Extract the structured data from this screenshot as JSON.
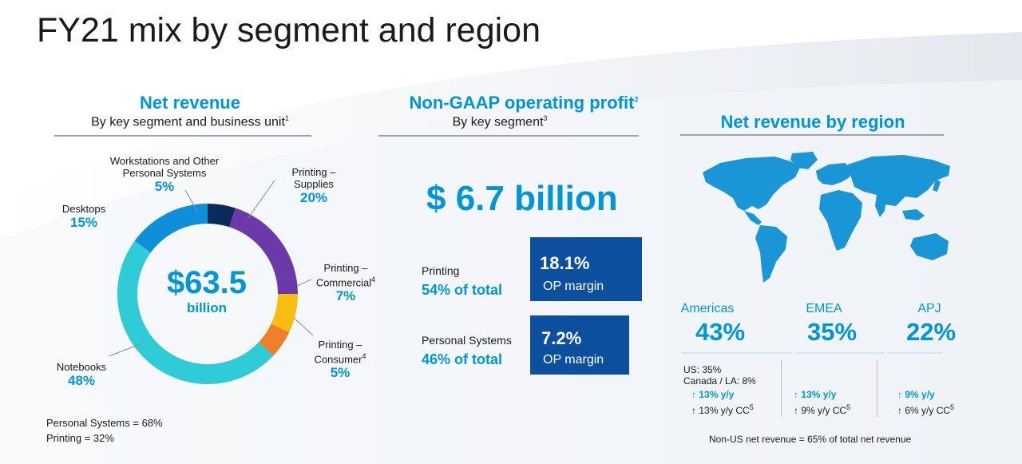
{
  "title": "FY21 mix by segment and region",
  "net_revenue": {
    "title": "Net revenue",
    "subtitle": "By key segment and business unit",
    "subtitle_sup": "1",
    "center_value": "$63.5",
    "center_unit": "billion",
    "segments": [
      {
        "label": "Workstations and Other Personal Systems",
        "value": "5%"
      },
      {
        "label": "Printing – Supplies",
        "value": "20%"
      },
      {
        "label": "Printing – Commercial",
        "sup": "4",
        "value": "7%"
      },
      {
        "label": "Printing – Consumer",
        "sup": "4",
        "value": "5%"
      },
      {
        "label": "Notebooks",
        "value": "48%"
      },
      {
        "label": "Desktops",
        "value": "15%"
      }
    ],
    "footer": [
      "Personal Systems = 68%",
      "Printing = 32%"
    ]
  },
  "op_profit": {
    "title": "Non-GAAP operating profit",
    "title_sup": "2",
    "subtitle": "By key segment",
    "subtitle_sup": "3",
    "total": "$ 6.7 billion",
    "rows": [
      {
        "segment": "Printing",
        "share": "54% of total",
        "margin": "18.1%",
        "margin_label": "OP margin"
      },
      {
        "segment": "Personal Systems",
        "share": "46% of total",
        "margin": "7.2%",
        "margin_label": "OP margin"
      }
    ]
  },
  "region": {
    "title": "Net revenue by region",
    "regions": [
      {
        "name": "Americas",
        "pct": "43%",
        "growth": "13% y/y",
        "cc": "13% y/y CC",
        "cc_sup": "5"
      },
      {
        "name": "EMEA",
        "pct": "35%",
        "growth": "13% y/y",
        "cc": "9% y/y CC",
        "cc_sup": "5"
      },
      {
        "name": "APJ",
        "pct": "22%",
        "growth": "9% y/y",
        "cc": "6% y/y CC",
        "cc_sup": "5"
      }
    ],
    "americas_split": [
      "US: 35%",
      "Canada / LA: 8%"
    ],
    "footer": "Non-US net revenue = 65% of total net revenue"
  },
  "chart_data": [
    {
      "type": "pie",
      "title": "Net revenue",
      "categories": [
        "Workstations and Other Personal Systems",
        "Printing – Supplies",
        "Printing – Commercial",
        "Printing – Consumer",
        "Notebooks",
        "Desktops"
      ],
      "values": [
        5,
        20,
        7,
        5,
        48,
        15
      ],
      "colors": [
        "#0b2a5c",
        "#6b3aa8",
        "#f7bd11",
        "#ef7d2a",
        "#2fcbd6",
        "#0d8fda"
      ]
    },
    {
      "type": "bar",
      "title": "Net revenue by region",
      "categories": [
        "Americas",
        "EMEA",
        "APJ"
      ],
      "values": [
        43,
        35,
        22
      ]
    }
  ]
}
